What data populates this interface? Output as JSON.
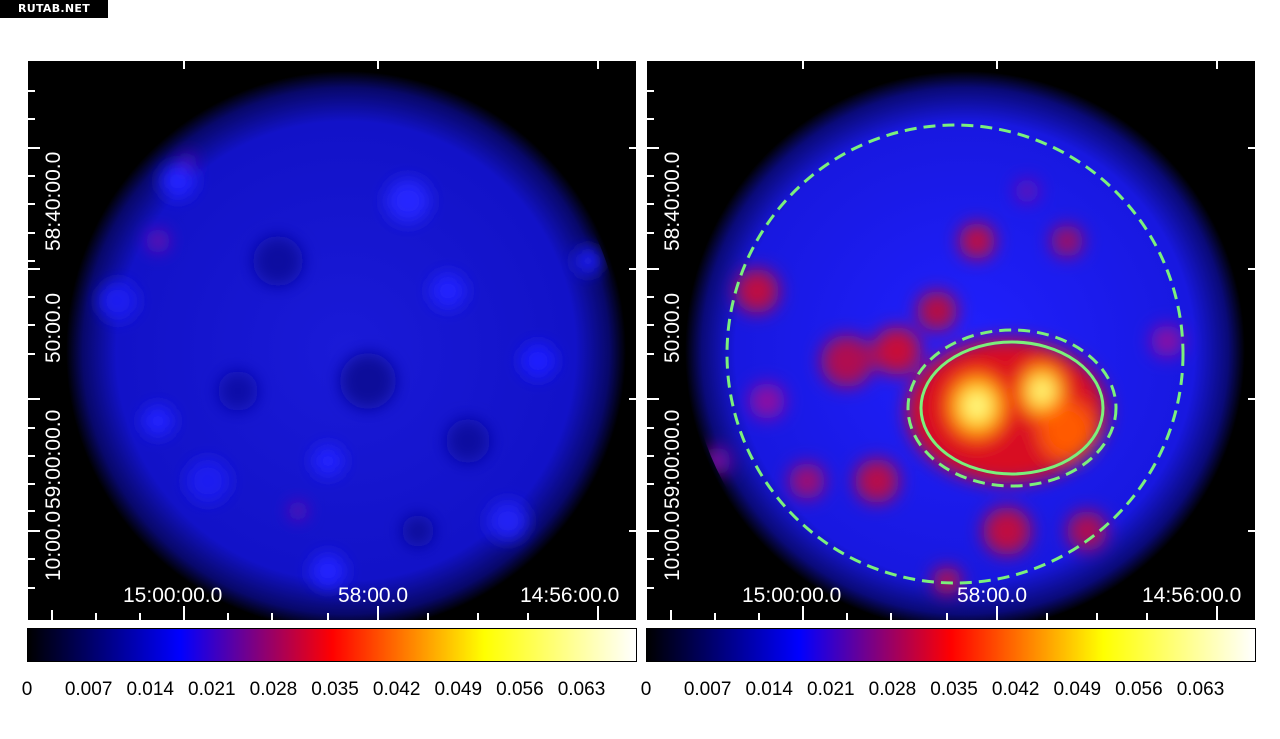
{
  "watermark": "RUTAB.NET",
  "colormap_stops": [
    "#000000",
    "#0000ff",
    "#ff0000",
    "#ffff00",
    "#ffffff"
  ],
  "left_panel": {
    "y_labels": [
      "58:40:00.0",
      "50:00.0",
      "59:00:00.0",
      "10:00.0"
    ],
    "x_labels": [
      "15:00:00.0",
      "58:00.0",
      "14:56:00.0"
    ]
  },
  "right_panel": {
    "y_labels": [
      "58:40:00.0",
      "50:00.0",
      "59:00:00.0",
      "10:00.0"
    ],
    "x_labels": [
      "15:00:00.0",
      "58:00.0",
      "14:56:00.0"
    ],
    "region_color": "#7cf07c"
  },
  "colorbar": {
    "ticks": [
      "0",
      "0.007",
      "0.014",
      "0.021",
      "0.028",
      "0.035",
      "0.042",
      "0.049",
      "0.056",
      "0.063"
    ]
  }
}
